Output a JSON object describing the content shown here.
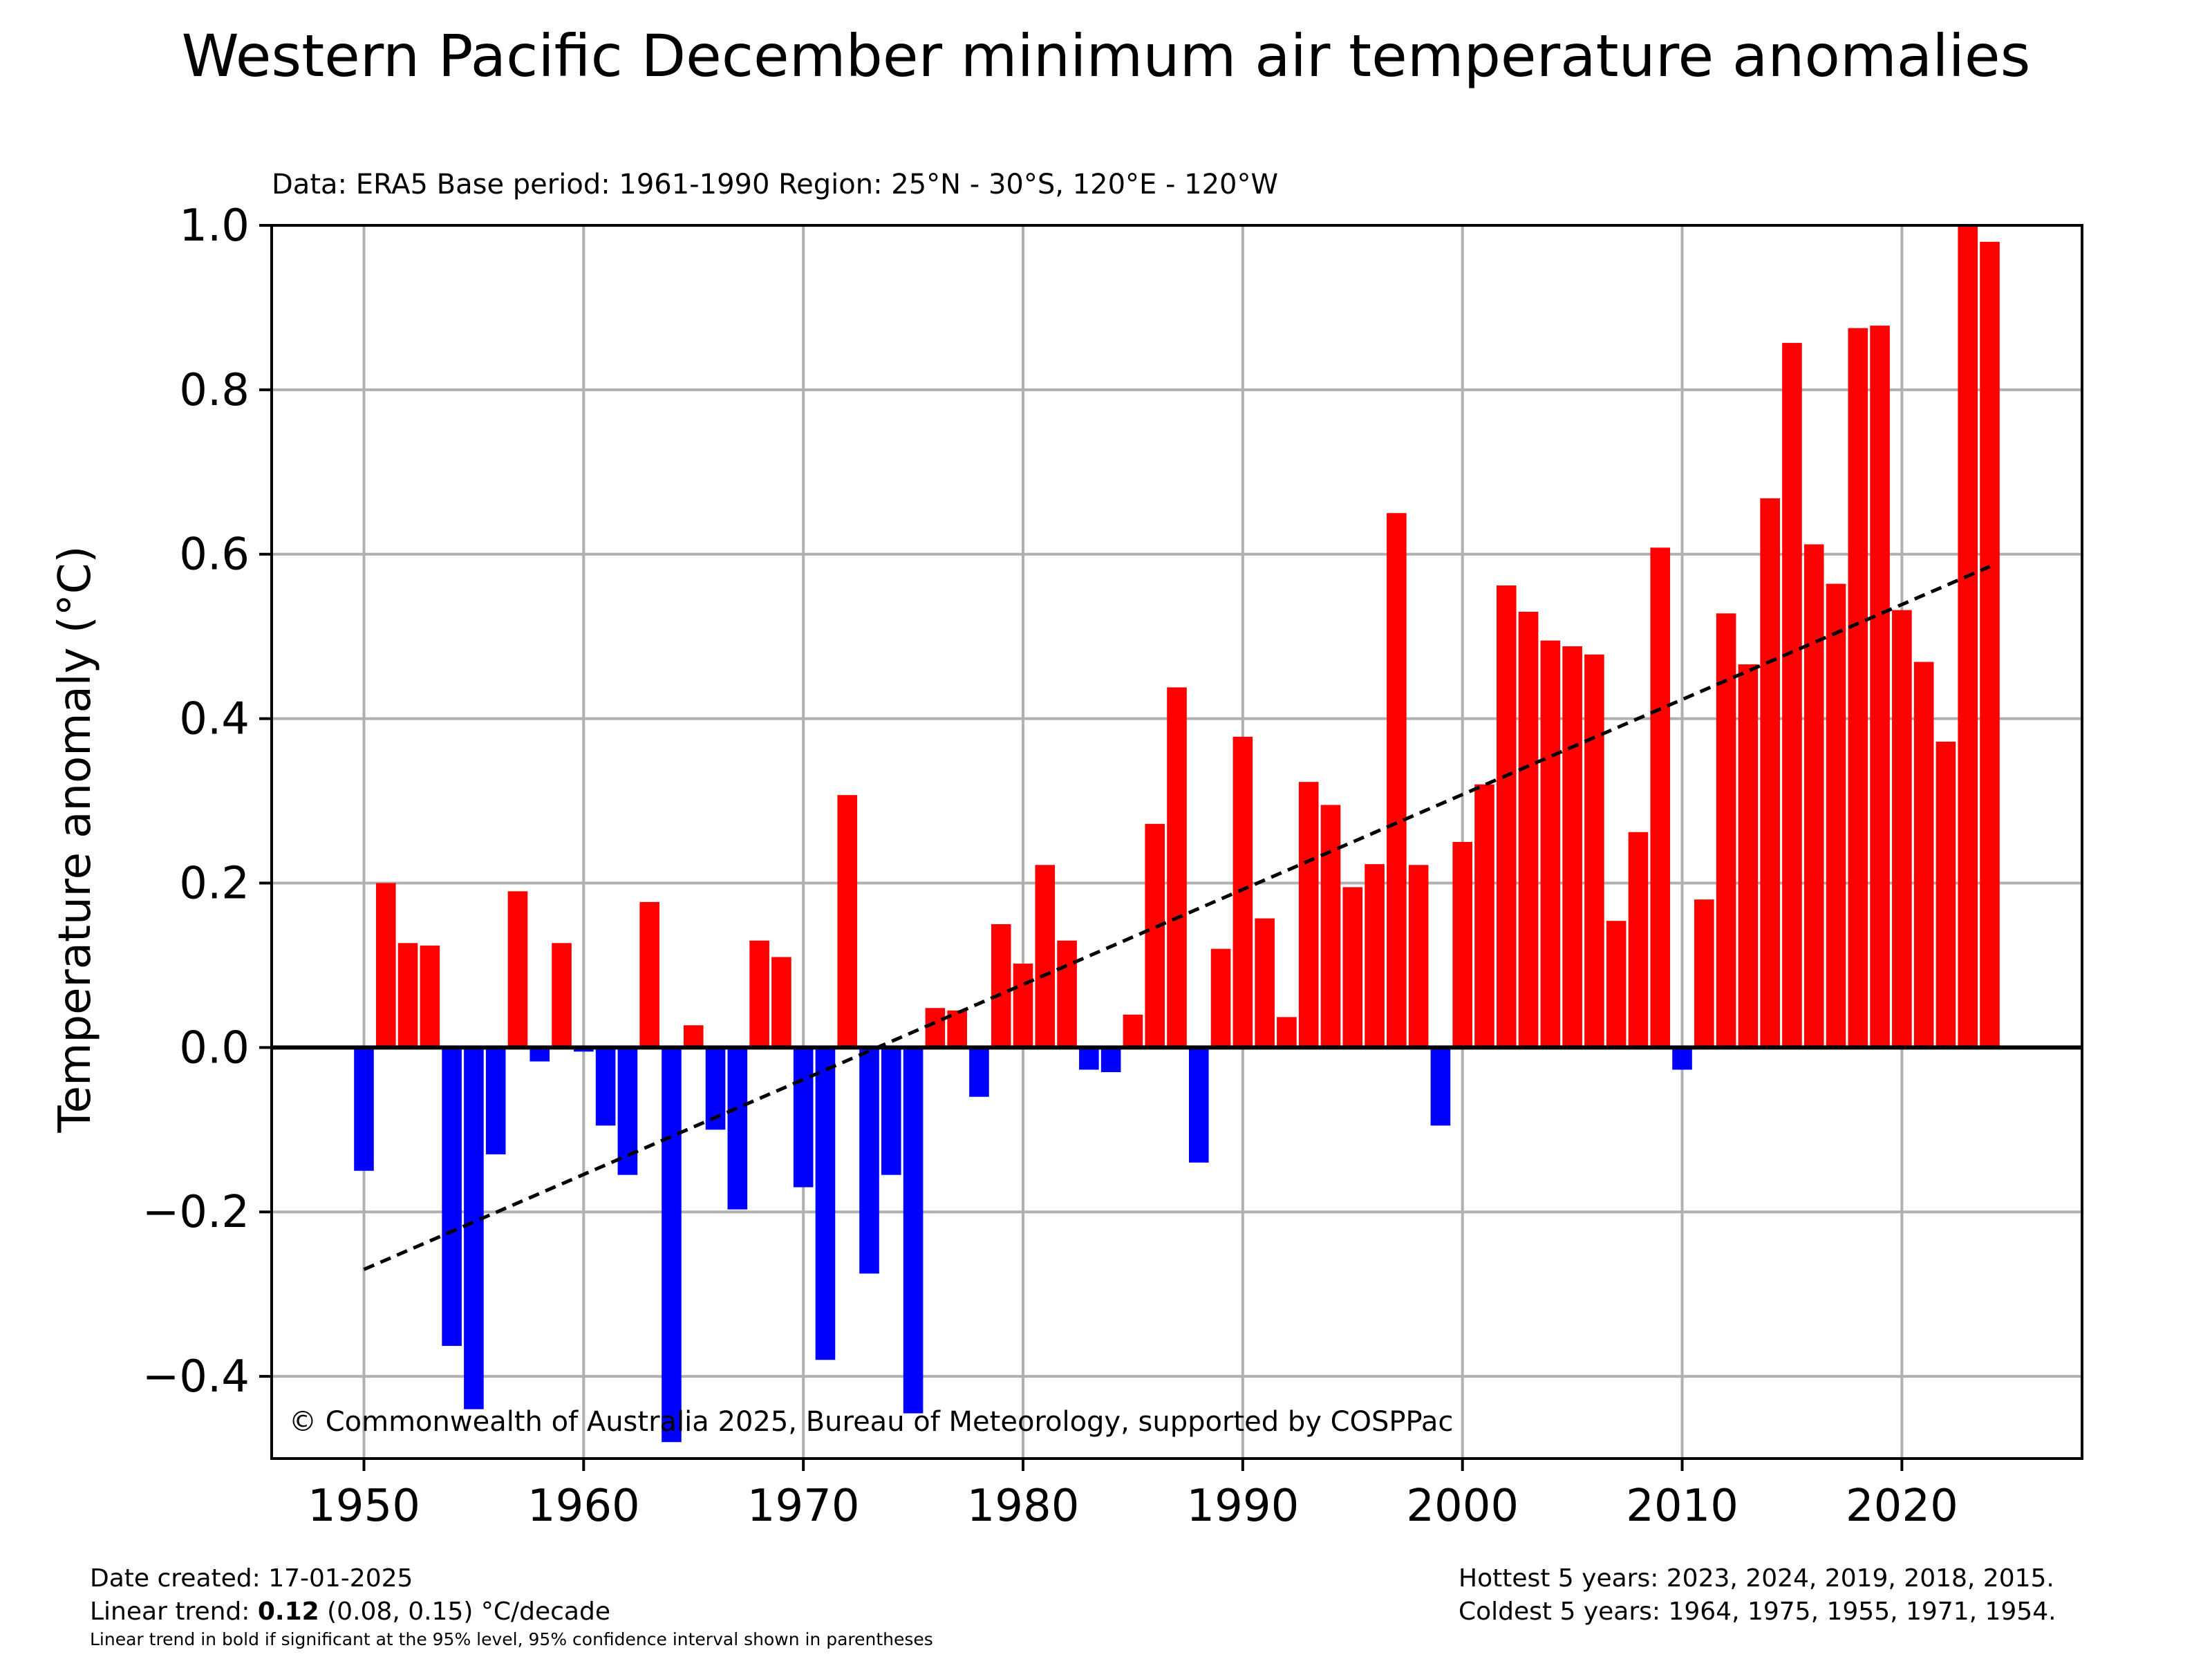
{
  "chart_data": {
    "type": "bar",
    "title": "Western Pacific December minimum air temperature anomalies",
    "subtitle": "Data: ERA5  Base period: 1961-1990  Region: 25°N - 30°S, 120°E - 120°W",
    "xlabel": "",
    "ylabel": "Temperature anomaly (°C)",
    "xlim": [
      1945.8,
      2028.2
    ],
    "ylim": [
      -0.5,
      1.0
    ],
    "x_ticks": [
      1950,
      1960,
      1970,
      1980,
      1990,
      2000,
      2010,
      2020
    ],
    "y_ticks": [
      1.0,
      0.8,
      0.6,
      0.4,
      0.2,
      0.0,
      -0.2,
      -0.4
    ],
    "y_tick_labels": [
      "1.0",
      "0.8",
      "0.6",
      "0.4",
      "0.2",
      "0.0",
      "−0.2",
      "−0.4"
    ],
    "grid": true,
    "positive_color": "#ff0000",
    "negative_color": "#0000ff",
    "trend_line": {
      "style": "dashed",
      "color": "#000000",
      "x": [
        1950,
        2024
      ],
      "y": [
        -0.27,
        0.585
      ]
    },
    "years": [
      1950,
      1951,
      1952,
      1953,
      1954,
      1955,
      1956,
      1957,
      1958,
      1959,
      1960,
      1961,
      1962,
      1963,
      1964,
      1965,
      1966,
      1967,
      1968,
      1969,
      1970,
      1971,
      1972,
      1973,
      1974,
      1975,
      1976,
      1977,
      1978,
      1979,
      1980,
      1981,
      1982,
      1983,
      1984,
      1985,
      1986,
      1987,
      1988,
      1989,
      1990,
      1991,
      1992,
      1993,
      1994,
      1995,
      1996,
      1997,
      1998,
      1999,
      2000,
      2001,
      2002,
      2003,
      2004,
      2005,
      2006,
      2007,
      2008,
      2009,
      2010,
      2011,
      2012,
      2013,
      2014,
      2015,
      2016,
      2017,
      2018,
      2019,
      2020,
      2021,
      2022,
      2023,
      2024
    ],
    "values": [
      -0.15,
      0.2,
      0.127,
      0.124,
      -0.363,
      -0.44,
      -0.13,
      0.19,
      -0.017,
      0.127,
      -0.005,
      -0.095,
      -0.155,
      0.177,
      -0.48,
      0.027,
      -0.1,
      -0.197,
      0.13,
      0.11,
      -0.17,
      -0.38,
      0.307,
      -0.275,
      -0.155,
      -0.445,
      0.048,
      0.045,
      -0.06,
      0.15,
      0.102,
      0.222,
      0.13,
      -0.027,
      -0.03,
      0.04,
      0.272,
      0.438,
      -0.14,
      0.12,
      0.378,
      0.157,
      0.037,
      0.323,
      0.295,
      0.195,
      0.223,
      0.65,
      0.222,
      -0.095,
      0.25,
      0.32,
      0.562,
      0.53,
      0.495,
      0.488,
      0.478,
      0.154,
      0.262,
      0.608,
      -0.027,
      0.18,
      0.528,
      0.466,
      0.668,
      0.857,
      0.612,
      0.564,
      0.875,
      0.878,
      0.532,
      0.469,
      0.372,
      1.0,
      0.98
    ]
  },
  "copyright": "© Commonwealth of Australia 2025, Bureau of Meteorology, supported by COSPPac",
  "footer": {
    "date_created": "Date created: 17-01-2025",
    "trend_prefix": "Linear trend: ",
    "trend_value": "0.12",
    "trend_suffix": " (0.08, 0.15) °C/decade",
    "trend_note": "Linear trend in bold if significant at the 95% level, 95% confidence interval shown in parentheses",
    "hottest": "Hottest 5 years: 2023, 2024, 2019, 2018, 2015.",
    "coldest": "Coldest 5 years: 1964, 1975, 1955, 1971, 1954."
  }
}
